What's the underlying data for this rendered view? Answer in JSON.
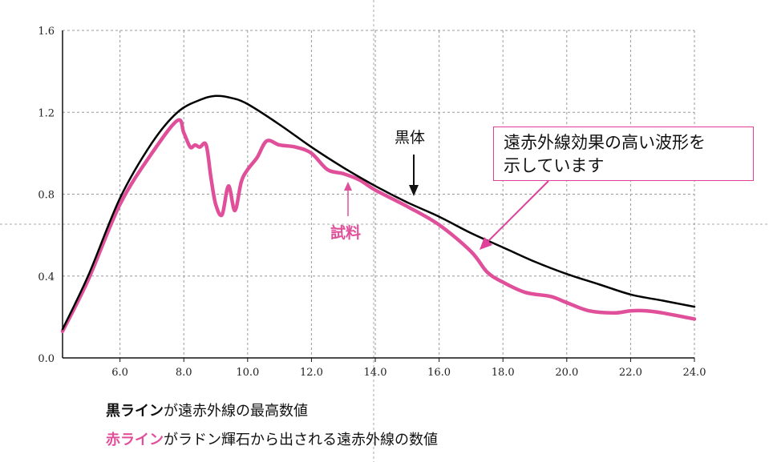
{
  "chart_data": {
    "type": "line",
    "xlim": [
      4.2,
      24.0
    ],
    "ylim": [
      0.0,
      1.6
    ],
    "x_ticks": [
      "6.0",
      "8.0",
      "10.0",
      "12.0",
      "14.0",
      "16.0",
      "18.0",
      "20.0",
      "22.0",
      "24.0"
    ],
    "y_ticks": [
      "0.0",
      "0.4",
      "0.8",
      "1.2",
      "1.6"
    ],
    "grid": true,
    "series": [
      {
        "name": "黒体",
        "color": "#000000",
        "x": [
          4.2,
          5.0,
          6.0,
          7.0,
          7.8,
          8.5,
          9.0,
          9.5,
          10.0,
          11.0,
          12.0,
          13.0,
          14.0,
          15.0,
          16.0,
          17.0,
          18.0,
          19.0,
          20.0,
          21.0,
          22.0,
          23.0,
          24.0
        ],
        "y": [
          0.14,
          0.4,
          0.78,
          1.05,
          1.2,
          1.26,
          1.28,
          1.27,
          1.24,
          1.14,
          1.03,
          0.93,
          0.84,
          0.76,
          0.69,
          0.61,
          0.54,
          0.47,
          0.41,
          0.36,
          0.31,
          0.28,
          0.25
        ]
      },
      {
        "name": "試料",
        "color": "#e0509a",
        "x": [
          4.2,
          5.0,
          6.0,
          7.0,
          7.8,
          8.0,
          8.2,
          8.35,
          8.5,
          8.7,
          8.85,
          9.0,
          9.2,
          9.4,
          9.6,
          9.8,
          10.0,
          10.3,
          10.6,
          11.0,
          11.5,
          12.0,
          12.5,
          13.0,
          13.5,
          14.0,
          15.0,
          16.0,
          17.0,
          17.5,
          18.0,
          18.7,
          19.5,
          20.0,
          20.7,
          21.5,
          22.0,
          22.5,
          23.0,
          24.0
        ],
        "y": [
          0.13,
          0.38,
          0.75,
          1.0,
          1.16,
          1.1,
          1.03,
          1.04,
          1.03,
          1.04,
          0.88,
          0.75,
          0.7,
          0.84,
          0.72,
          0.86,
          0.92,
          0.98,
          1.06,
          1.04,
          1.03,
          1.0,
          0.92,
          0.9,
          0.87,
          0.82,
          0.74,
          0.65,
          0.52,
          0.42,
          0.37,
          0.32,
          0.3,
          0.27,
          0.23,
          0.22,
          0.23,
          0.23,
          0.22,
          0.19
        ]
      }
    ],
    "annotations": {
      "blackbody_label": "黒体",
      "sample_label": "試料",
      "callout_line1": "遠赤外線効果の高い波形を",
      "callout_line2": "示しています"
    }
  },
  "legend": {
    "line1_key": "黒ライン",
    "line1_text": "が遠赤外線の最高数値",
    "line2_key": "赤ライン",
    "line2_text": "がラドン輝石から出される遠赤外線の数値"
  }
}
